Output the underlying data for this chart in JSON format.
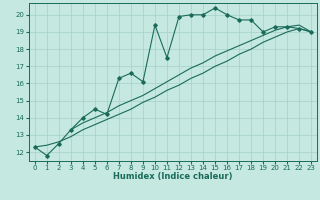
{
  "xlabel": "Humidex (Indice chaleur)",
  "bg_color": "#c5e8e0",
  "line_color": "#1a6b5a",
  "grid_color": "#aad4ca",
  "xlim": [
    -0.5,
    23.5
  ],
  "ylim": [
    11.5,
    20.7
  ],
  "xticks": [
    0,
    1,
    2,
    3,
    4,
    5,
    6,
    7,
    8,
    9,
    10,
    11,
    12,
    13,
    14,
    15,
    16,
    17,
    18,
    19,
    20,
    21,
    22,
    23
  ],
  "yticks": [
    12,
    13,
    14,
    15,
    16,
    17,
    18,
    19,
    20
  ],
  "series1_x": [
    0,
    1,
    2,
    3,
    4,
    5,
    6,
    7,
    8,
    9,
    10,
    11,
    12,
    13,
    14,
    15,
    16,
    17,
    18,
    19,
    20,
    21,
    22,
    23
  ],
  "series1_y": [
    12.3,
    11.8,
    12.5,
    13.3,
    14.0,
    14.5,
    14.2,
    16.3,
    16.6,
    16.1,
    19.4,
    17.5,
    19.9,
    20.0,
    20.0,
    20.4,
    20.0,
    19.7,
    19.7,
    19.0,
    19.3,
    19.3,
    19.2,
    19.0
  ],
  "series2_x": [
    0,
    1,
    2,
    3,
    4,
    5,
    6,
    7,
    8,
    9,
    10,
    11,
    12,
    13,
    14,
    15,
    16,
    17,
    18,
    19,
    20,
    21,
    22,
    23
  ],
  "series2_y": [
    12.3,
    12.4,
    12.6,
    12.9,
    13.3,
    13.6,
    13.9,
    14.2,
    14.5,
    14.9,
    15.2,
    15.6,
    15.9,
    16.3,
    16.6,
    17.0,
    17.3,
    17.7,
    18.0,
    18.4,
    18.7,
    19.0,
    19.2,
    19.0
  ],
  "series3_x": [
    3,
    4,
    5,
    6,
    7,
    8,
    9,
    10,
    11,
    12,
    13,
    14,
    15,
    16,
    17,
    18,
    19,
    20,
    21,
    22,
    23
  ],
  "series3_y": [
    13.3,
    13.7,
    14.0,
    14.3,
    14.7,
    15.0,
    15.3,
    15.7,
    16.1,
    16.5,
    16.9,
    17.2,
    17.6,
    17.9,
    18.2,
    18.5,
    18.8,
    19.1,
    19.3,
    19.4,
    19.0
  ]
}
